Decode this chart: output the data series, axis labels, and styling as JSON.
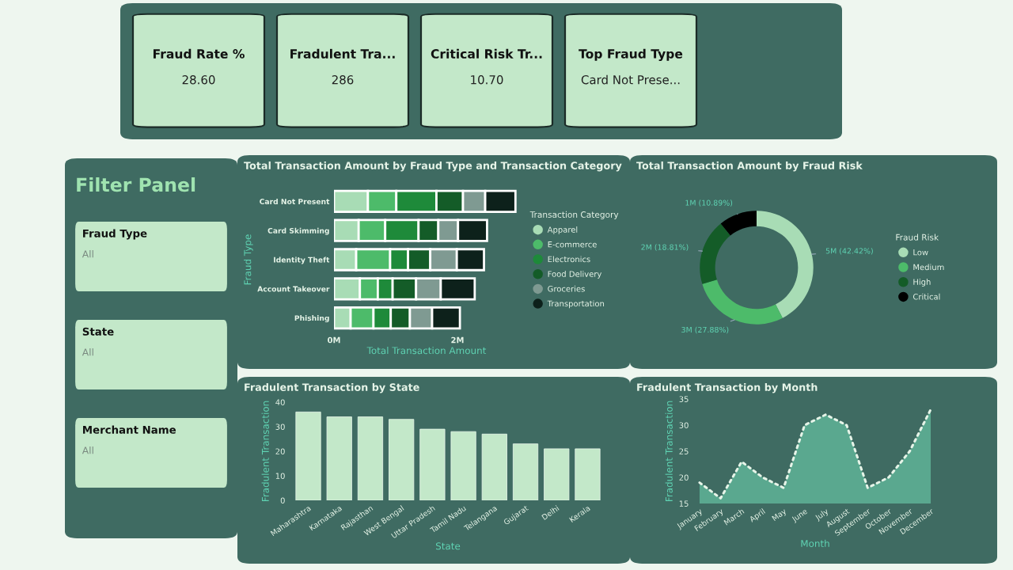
{
  "chart_data": [
    {
      "type": "other",
      "annotations": [
        "Fraud Rate %",
        "28.60",
        "Fradulent Tra...",
        "286",
        "Critical Risk Tr...",
        "10.70",
        "Top Fraud Type",
        "Card Not Prese..."
      ]
    },
    {
      "type": "other",
      "title": "Filter Panel",
      "annotations": [
        "Fraud Type",
        "All",
        "State",
        "All",
        "Merchant Name",
        "All"
      ]
    },
    {
      "type": "bar",
      "orientation": "horizontal",
      "stacked": true,
      "title": "Total Transaction Amount by Fraud Type and Transaction Category",
      "xlabel": "Total Transaction Amount",
      "ylabel": "Fraud Type",
      "legend_title": "Transaction Category",
      "legend": "right",
      "categories": [
        "Card Not Present",
        "Card Skimming",
        "Identity Theft",
        "Account Takeover",
        "Phishing"
      ],
      "xlim": [
        0,
        3
      ],
      "xticks": [
        {
          "value": 0,
          "label": "0M"
        },
        {
          "value": 2,
          "label": "2M"
        }
      ],
      "series": [
        {
          "name": "Apparel",
          "color": "#a8dcb5",
          "values": [
            0.55,
            0.4,
            0.36,
            0.42,
            0.27
          ]
        },
        {
          "name": "E-commerce",
          "color": "#4dbb6a",
          "values": [
            0.46,
            0.43,
            0.55,
            0.29,
            0.37
          ]
        },
        {
          "name": "Electronics",
          "color": "#1e8a3a",
          "values": [
            0.65,
            0.54,
            0.29,
            0.24,
            0.28
          ]
        },
        {
          "name": "Food Delivery",
          "color": "#145c28",
          "values": [
            0.43,
            0.32,
            0.36,
            0.38,
            0.31
          ]
        },
        {
          "name": "Groceries",
          "color": "#7f9a92",
          "values": [
            0.36,
            0.32,
            0.43,
            0.4,
            0.36
          ]
        },
        {
          "name": "Transportation",
          "color": "#0d211b",
          "values": [
            0.49,
            0.47,
            0.44,
            0.55,
            0.45
          ]
        }
      ]
    },
    {
      "type": "donut",
      "title": "Total Transaction Amount by Fraud Risk",
      "legend_title": "Fraud Risk",
      "legend": "right",
      "categories": [
        "Low",
        "Medium",
        "High",
        "Critical"
      ],
      "values": [
        42.42,
        27.88,
        18.81,
        10.89
      ],
      "value_labels": [
        "5M (42.42%)",
        "3M (27.88%)",
        "2M (18.81%)",
        "1M (10.89%)"
      ],
      "colors": [
        "#a8dcb5",
        "#4dbb6a",
        "#145c28",
        "#000000"
      ]
    },
    {
      "type": "bar",
      "title": "Fradulent Transaction by State",
      "xlabel": "State",
      "ylabel": "Fradulent Transaction",
      "categories": [
        "Maharashtra",
        "Karnataka",
        "Rajasthan",
        "West Bengal",
        "Uttar Pradesh",
        "Tamil Nadu",
        "Telangana",
        "Gujarat",
        "Delhi",
        "Kerala"
      ],
      "values": [
        36,
        34,
        34,
        33,
        29,
        28,
        27,
        23,
        21,
        21
      ],
      "color": "#c3e8c9",
      "ylim": [
        0,
        40
      ],
      "yticks": [
        0,
        10,
        20,
        30,
        40
      ]
    },
    {
      "type": "area",
      "title": "Fradulent Transaction by Month",
      "xlabel": "Month",
      "ylabel": "Fradulent Transaction",
      "categories": [
        "January",
        "February",
        "March",
        "April",
        "May",
        "June",
        "July",
        "August",
        "September",
        "October",
        "November",
        "December"
      ],
      "values": [
        19,
        16,
        23,
        20,
        18,
        30,
        32,
        30,
        18,
        20,
        25,
        33
      ],
      "color": "#5aa88f",
      "line_style": "dotted",
      "ylim": [
        15,
        35
      ],
      "yticks": [
        15,
        20,
        25,
        30,
        35
      ]
    }
  ]
}
